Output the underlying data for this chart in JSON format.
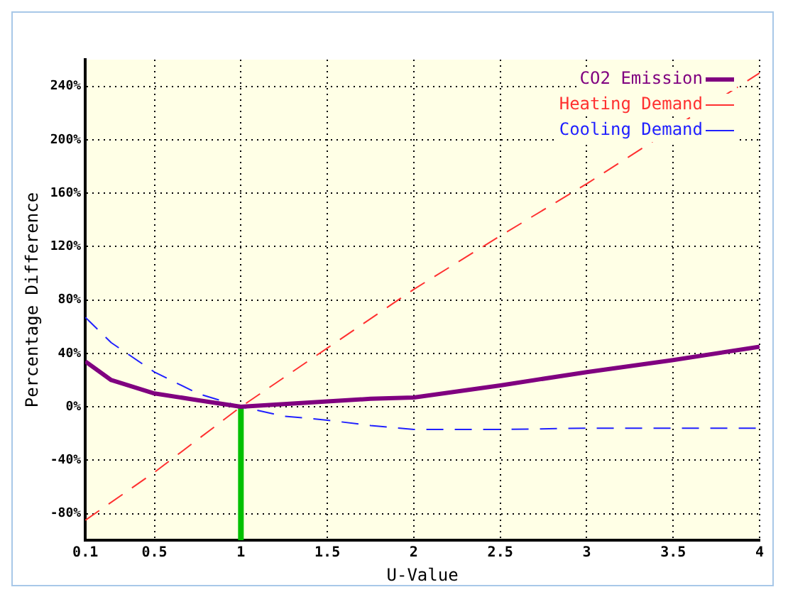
{
  "chart_data": {
    "type": "line",
    "xlabel": "U-Value",
    "ylabel": "Percentage Difference",
    "xlim": [
      0.1,
      4
    ],
    "xticks": [
      0.1,
      0.5,
      1,
      1.5,
      2,
      2.5,
      3,
      3.5,
      4
    ],
    "ylim": [
      -100,
      260
    ],
    "yticks": [
      {
        "value": -80,
        "label": "-80%"
      },
      {
        "value": -40,
        "label": "-40%"
      },
      {
        "value": 0,
        "label": "0%"
      },
      {
        "value": 40,
        "label": "40%"
      },
      {
        "value": 80,
        "label": "80%"
      },
      {
        "value": 120,
        "label": "120%"
      },
      {
        "value": 160,
        "label": "160%"
      },
      {
        "value": 200,
        "label": "200%"
      },
      {
        "value": 240,
        "label": "240%"
      }
    ],
    "grid": true,
    "legend": "top right",
    "marker": "none",
    "series": [
      {
        "name": "CO2 Emission",
        "color": "#800080",
        "line_style": "solid",
        "x": [
          0.1,
          0.25,
          0.5,
          0.75,
          1,
          1.25,
          1.5,
          1.75,
          2,
          2.5,
          3,
          3.5,
          4
        ],
        "values": [
          34,
          20,
          10,
          5,
          0,
          2,
          4,
          6,
          7,
          16,
          26,
          35,
          45
        ]
      },
      {
        "name": "Heating Demand",
        "color": "#ff3030",
        "line_style": "dashed",
        "x": [
          0.1,
          0.5,
          1,
          1.5,
          2,
          2.5,
          3,
          4
        ],
        "values": [
          -85,
          -49,
          0,
          44,
          88,
          128,
          167,
          250
        ]
      },
      {
        "name": "Cooling Demand",
        "color": "#2020ff",
        "line_style": "dashed",
        "x": [
          0.1,
          0.25,
          0.5,
          0.75,
          1,
          1.25,
          1.5,
          1.75,
          2,
          2.5,
          3,
          3.5,
          4
        ],
        "values": [
          67,
          48,
          26,
          10,
          0,
          -7,
          -10,
          -14,
          -17,
          -17,
          -16,
          -16,
          -16
        ]
      },
      {
        "color": "#00c000",
        "line_style": "solid",
        "x": [
          1,
          1
        ],
        "values": [
          -100,
          0
        ]
      }
    ]
  }
}
